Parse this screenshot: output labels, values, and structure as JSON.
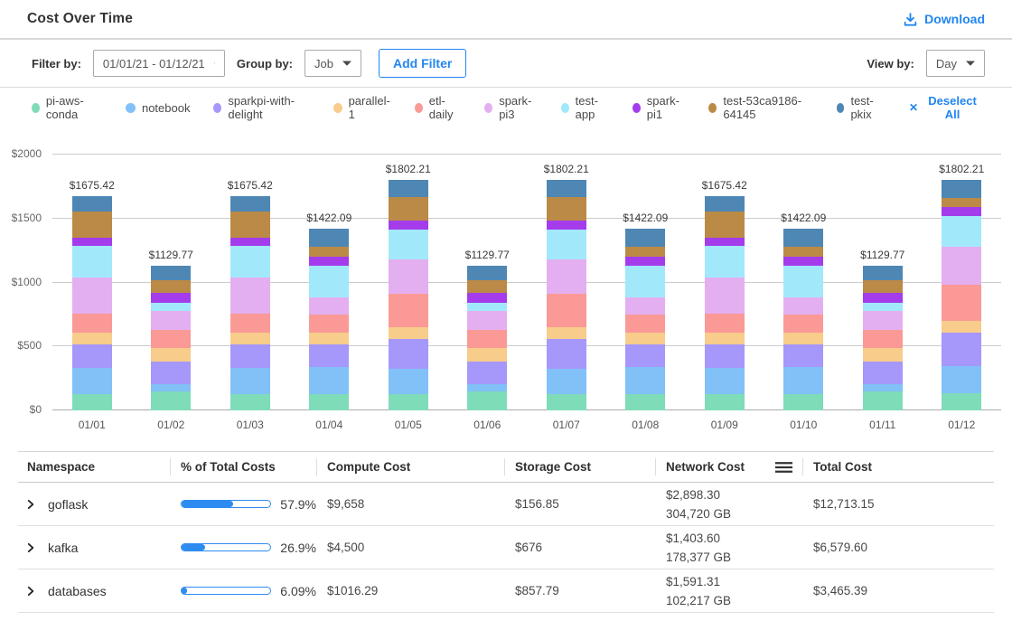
{
  "header": {
    "title": "Cost Over Time",
    "download_label": "Download"
  },
  "filters": {
    "filter_by_label": "Filter by:",
    "date_range_value": "01/01/21 - 01/12/21",
    "group_by_label": "Group by:",
    "group_by_value": "Job",
    "add_filter_label": "Add Filter",
    "view_by_label": "View by:",
    "view_by_value": "Day"
  },
  "legend": {
    "deselect_all_label": "Deselect All",
    "items": [
      {
        "label": "pi-aws-conda",
        "color": "#7EDCB9"
      },
      {
        "label": "notebook",
        "color": "#82C0F8"
      },
      {
        "label": "sparkpi-with-delight",
        "color": "#A697FA"
      },
      {
        "label": "parallel-1",
        "color": "#F8CC8B"
      },
      {
        "label": "etl-daily",
        "color": "#FA9996"
      },
      {
        "label": "spark-pi3",
        "color": "#E4AFF0"
      },
      {
        "label": "test-app",
        "color": "#A2E8FB"
      },
      {
        "label": "spark-pi1",
        "color": "#A43CEC"
      },
      {
        "label": "test-53ca9186-64145",
        "color": "#BB8A46"
      },
      {
        "label": "test-pkix",
        "color": "#4E87B4"
      }
    ]
  },
  "chart_data": {
    "type": "bar",
    "stacked": true,
    "title": "Cost Over Time",
    "xlabel": "",
    "ylabel": "",
    "ylim": [
      0,
      2000
    ],
    "grid": true,
    "legend_position": "top",
    "categories": [
      "01/01",
      "01/02",
      "01/03",
      "01/04",
      "01/05",
      "01/06",
      "01/07",
      "01/08",
      "01/09",
      "01/10",
      "01/11",
      "01/12"
    ],
    "totals": [
      1675.42,
      1129.77,
      1675.42,
      1422.09,
      1802.21,
      1129.77,
      1802.21,
      1422.09,
      1675.42,
      1422.09,
      1129.77,
      1802.21
    ],
    "total_labels": [
      "$1675.42",
      "$1129.77",
      "$1675.42",
      "$1422.09",
      "$1802.21",
      "$1129.77",
      "$1802.21",
      "$1422.09",
      "$1675.42",
      "$1422.09",
      "$1129.77",
      "$1802.21"
    ],
    "yticks": [
      {
        "value": 0,
        "label": "$0"
      },
      {
        "value": 500,
        "label": "$500"
      },
      {
        "value": 1000,
        "label": "$1000"
      },
      {
        "value": 1500,
        "label": "$1500"
      },
      {
        "value": 2000,
        "label": "$2000"
      }
    ],
    "series": [
      {
        "name": "pi-aws-conda",
        "values": [
          129,
          152,
          129,
          129,
          124,
          152,
          124,
          129,
          129,
          129,
          152,
          134
        ]
      },
      {
        "name": "notebook",
        "values": [
          206,
          51,
          206,
          207,
          199,
          51,
          199,
          207,
          206,
          207,
          51,
          215
        ]
      },
      {
        "name": "sparkpi-with-delight",
        "values": [
          182,
          177,
          182,
          183,
          239,
          177,
          239,
          183,
          182,
          183,
          177,
          258
        ]
      },
      {
        "name": "parallel-1",
        "values": [
          90,
          109,
          90,
          90,
          89,
          109,
          89,
          90,
          90,
          90,
          109,
          91
        ]
      },
      {
        "name": "etl-daily",
        "values": [
          146,
          139,
          146,
          141,
          263,
          139,
          263,
          141,
          146,
          141,
          139,
          283
        ]
      },
      {
        "name": "spark-pi3",
        "values": [
          287,
          152,
          287,
          134,
          270,
          152,
          270,
          134,
          287,
          134,
          152,
          296
        ]
      },
      {
        "name": "test-app",
        "values": [
          248,
          63,
          248,
          244,
          230,
          63,
          230,
          244,
          248,
          244,
          63,
          240
        ]
      },
      {
        "name": "spark-pi1",
        "values": [
          63,
          76,
          63,
          73,
          70,
          76,
          70,
          73,
          63,
          73,
          76,
          76
        ]
      },
      {
        "name": "test-53ca9186-64145",
        "values": [
          204,
          101,
          204,
          80,
          188,
          101,
          188,
          80,
          204,
          80,
          101,
          71
        ]
      },
      {
        "name": "test-pkix",
        "values": [
          120.42,
          109.77,
          120.42,
          141.09,
          130.21,
          109.77,
          130.21,
          141.09,
          120.42,
          141.09,
          109.77,
          138.21
        ]
      }
    ]
  },
  "table": {
    "columns": [
      "Namespace",
      "% of Total Costs",
      "Compute Cost",
      "Storage Cost",
      "Network  Cost",
      "Total Cost"
    ],
    "rows": [
      {
        "namespace": "goflask",
        "percent": 57.9,
        "percent_label": "57.9%",
        "compute": "$9,658",
        "storage": "$156.85",
        "network_cost": "$2,898.30",
        "network_gb": "304,720 GB",
        "total": "$12,713.15"
      },
      {
        "namespace": "kafka",
        "percent": 26.9,
        "percent_label": "26.9%",
        "compute": "$4,500",
        "storage": "$676",
        "network_cost": "$1,403.60",
        "network_gb": "178,377 GB",
        "total": "$6,579.60"
      },
      {
        "namespace": "databases",
        "percent": 6.09,
        "percent_label": "6.09%",
        "compute": "$1016.29",
        "storage": "$857.79",
        "network_cost": "$1,591.31",
        "network_gb": "102,217 GB",
        "total": "$3,465.39"
      }
    ]
  },
  "colors": {
    "accent_blue": "#2186F0",
    "progress_fill": "#2E8BF0",
    "grid_line": "#CCCCCC",
    "divider": "#DBDBDB"
  }
}
